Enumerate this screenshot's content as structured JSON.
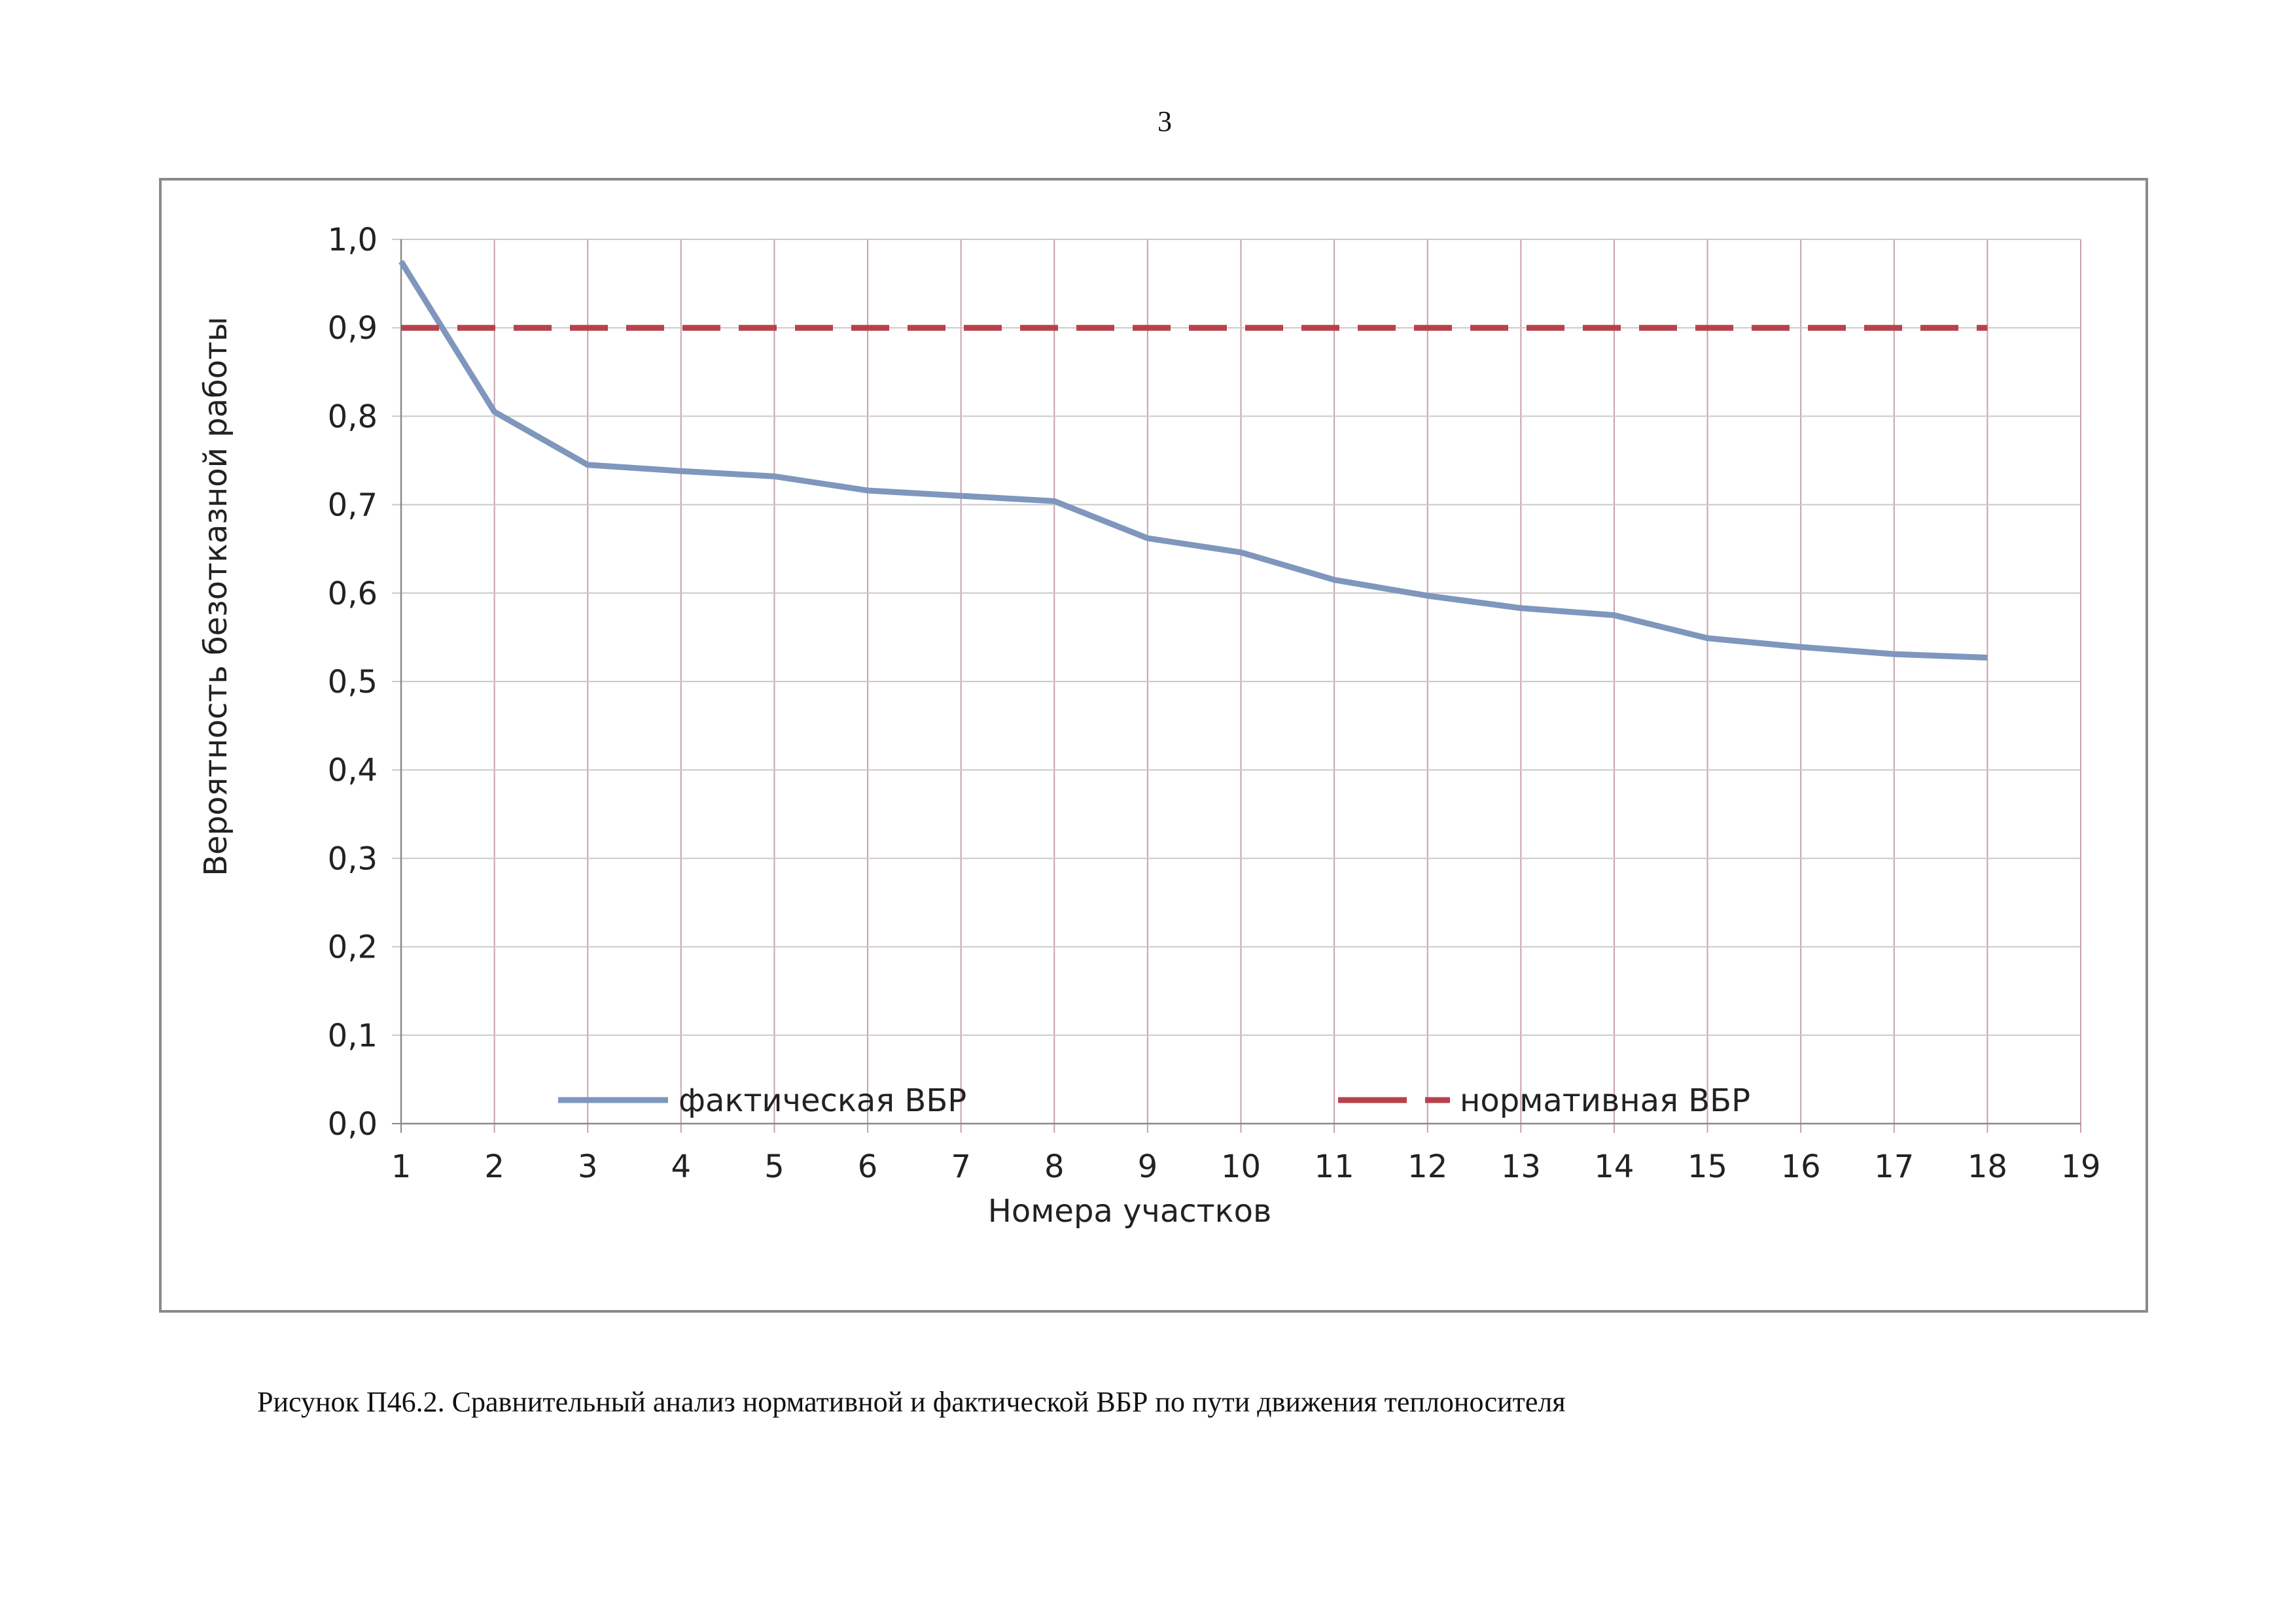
{
  "page": {
    "number": "3",
    "caption": "Рисунок П46.2. Сравнительный анализ нормативной и фактической ВБР по пути движения теплоносителя"
  },
  "chart_data": {
    "type": "line",
    "title": "",
    "xlabel": "Номера участков",
    "ylabel": "Вероятность безотказной работы",
    "x_ticks": [
      "1",
      "2",
      "3",
      "4",
      "5",
      "6",
      "7",
      "8",
      "9",
      "10",
      "11",
      "12",
      "13",
      "14",
      "15",
      "16",
      "17",
      "18",
      "19"
    ],
    "y_ticks": [
      "0,0",
      "0,1",
      "0,2",
      "0,3",
      "0,4",
      "0,5",
      "0,6",
      "0,7",
      "0,8",
      "0,9",
      "1,0"
    ],
    "xlim": [
      1,
      19
    ],
    "ylim": [
      0,
      1
    ],
    "grid": true,
    "legend_position": "bottom",
    "x": [
      1,
      2,
      3,
      4,
      5,
      6,
      7,
      8,
      9,
      10,
      11,
      12,
      13,
      14,
      15,
      16,
      17,
      18
    ],
    "series": [
      {
        "name": "фактическая ВБР",
        "style": "solid",
        "color": "#7f96bd",
        "values": [
          0.975,
          0.805,
          0.745,
          0.738,
          0.732,
          0.716,
          0.71,
          0.704,
          0.662,
          0.646,
          0.615,
          0.597,
          0.583,
          0.575,
          0.549,
          0.539,
          0.531,
          0.527
        ]
      },
      {
        "name": "нормативная ВБР",
        "style": "dashed",
        "color": "#b8424c",
        "values": [
          0.9,
          0.9,
          0.9,
          0.9,
          0.9,
          0.9,
          0.9,
          0.9,
          0.9,
          0.9,
          0.9,
          0.9,
          0.9,
          0.9,
          0.9,
          0.9,
          0.9,
          0.9
        ]
      }
    ],
    "colors": {
      "grid_vertical": "#c9a1a8",
      "grid_horizontal": "#c9c9c9",
      "axis": "#8a8a8a"
    }
  }
}
